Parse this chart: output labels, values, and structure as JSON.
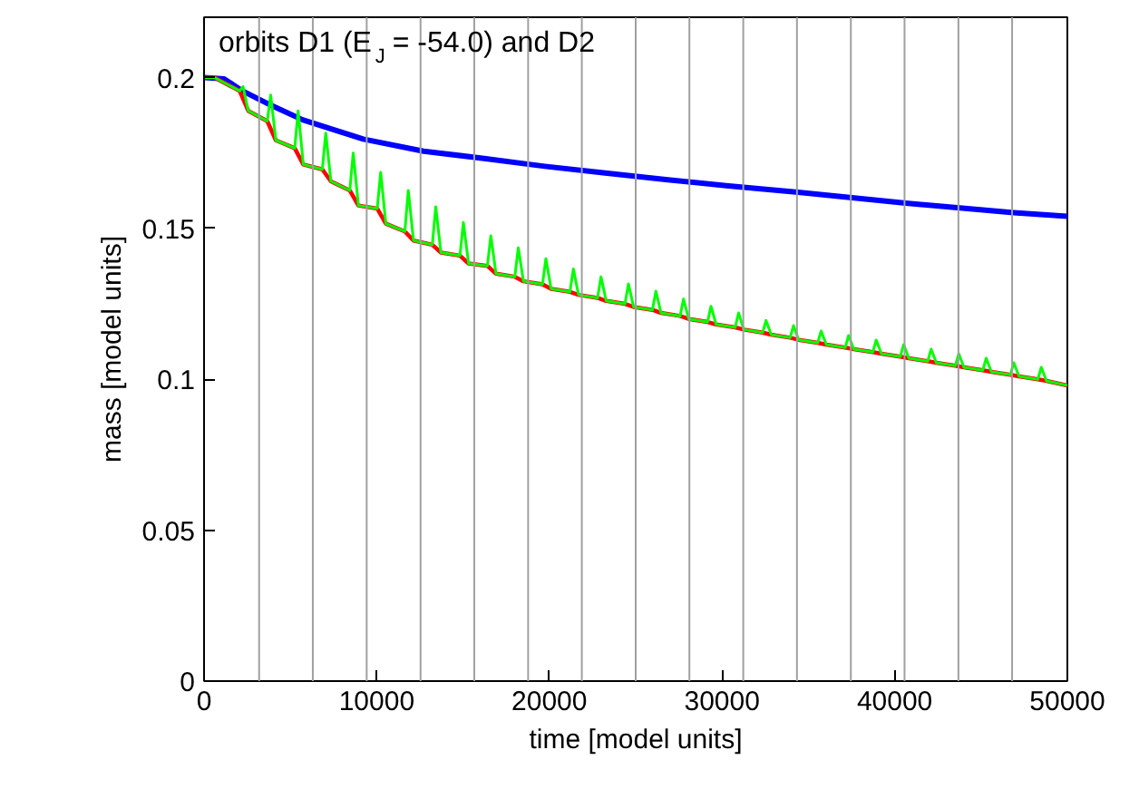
{
  "chart_data": {
    "type": "line",
    "title": "orbits D1 (E$_{J}$ = -54.0) and D2",
    "xlabel": "time [model units]",
    "ylabel": "mass [model units]",
    "xlim": [
      0,
      50000
    ],
    "ylim": [
      0,
      0.22
    ],
    "xticks": [
      0,
      10000,
      20000,
      30000,
      40000,
      50000
    ],
    "yticks": [
      0,
      0.05,
      0.1,
      0.15,
      0.2
    ],
    "grid": false,
    "marker": "none",
    "line_style": "solid",
    "ref_lines": [
      {
        "axis": "x",
        "value": 3190,
        "color": "#a0a0a0"
      },
      {
        "axis": "x",
        "value": 6300,
        "color": "#a0a0a0"
      },
      {
        "axis": "x",
        "value": 9420,
        "color": "#a0a0a0"
      },
      {
        "axis": "x",
        "value": 12540,
        "color": "#a0a0a0"
      },
      {
        "axis": "x",
        "value": 15650,
        "color": "#a0a0a0"
      },
      {
        "axis": "x",
        "value": 18770,
        "color": "#a0a0a0"
      },
      {
        "axis": "x",
        "value": 21880,
        "color": "#a0a0a0"
      },
      {
        "axis": "x",
        "value": 25000,
        "color": "#a0a0a0"
      },
      {
        "axis": "x",
        "value": 28110,
        "color": "#a0a0a0"
      },
      {
        "axis": "x",
        "value": 31230,
        "color": "#a0a0a0"
      },
      {
        "axis": "x",
        "value": 34340,
        "color": "#a0a0a0"
      },
      {
        "axis": "x",
        "value": 37460,
        "color": "#a0a0a0"
      },
      {
        "axis": "x",
        "value": 40570,
        "color": "#a0a0a0"
      },
      {
        "axis": "x",
        "value": 43690,
        "color": "#a0a0a0"
      },
      {
        "axis": "x",
        "value": 46800,
        "color": "#a0a0a0"
      }
    ],
    "series": [
      {
        "color": "#0000ff",
        "x": [
          0,
          1160,
          2210,
          3960,
          5710,
          9220,
          12720,
          16220,
          19730,
          23230,
          26740,
          30240,
          34410,
          37530,
          40650,
          43770,
          46890,
          50000
        ],
        "values": [
          0.2,
          0.1996,
          0.1956,
          0.1906,
          0.186,
          0.1796,
          0.1756,
          0.1732,
          0.1706,
          0.1684,
          0.1662,
          0.1642,
          0.162,
          0.1602,
          0.1584,
          0.1568,
          0.1552,
          0.154
        ]
      },
      {
        "color": "#ff0000",
        "x": [
          0,
          600,
          2060,
          2560,
          3660,
          4160,
          5250,
          5750,
          6850,
          7350,
          8440,
          8940,
          10030,
          10530,
          11630,
          12130,
          13220,
          13720,
          14820,
          15320,
          16410,
          16910,
          18000,
          18500,
          19600,
          20100,
          21190,
          21690,
          22790,
          23290,
          24380,
          24880,
          25970,
          26470,
          27570,
          28070,
          29160,
          29660,
          30760,
          31260,
          32350,
          32850,
          33940,
          34440,
          35540,
          36040,
          37130,
          37630,
          38730,
          39230,
          40320,
          40820,
          41910,
          42410,
          43510,
          44010,
          45100,
          45600,
          46700,
          47200,
          48290,
          48790,
          50000
        ],
        "values": [
          0.2,
          0.2,
          0.1956,
          0.189,
          0.1856,
          0.1792,
          0.1766,
          0.1712,
          0.1696,
          0.1656,
          0.1626,
          0.1576,
          0.1566,
          0.1516,
          0.149,
          0.146,
          0.1446,
          0.142,
          0.141,
          0.1384,
          0.1376,
          0.135,
          0.134,
          0.1325,
          0.1315,
          0.13,
          0.129,
          0.128,
          0.127,
          0.126,
          0.125,
          0.124,
          0.123,
          0.122,
          0.121,
          0.12,
          0.119,
          0.1182,
          0.1172,
          0.1165,
          0.1155,
          0.1148,
          0.1138,
          0.1131,
          0.1121,
          0.1115,
          0.1105,
          0.11,
          0.109,
          0.1085,
          0.1075,
          0.107,
          0.106,
          0.1055,
          0.1045,
          0.104,
          0.103,
          0.1025,
          0.1015,
          0.101,
          0.1,
          0.0995,
          0.098
        ]
      },
      {
        "color": "#00ff00",
        "x": [
          0,
          600,
          2060,
          2260,
          2560,
          3660,
          3860,
          4160,
          5250,
          5450,
          5750,
          6850,
          7050,
          7350,
          8440,
          8640,
          8940,
          10030,
          10230,
          10530,
          11630,
          11830,
          12130,
          13220,
          13420,
          13720,
          14820,
          15020,
          15320,
          16410,
          16610,
          16910,
          18000,
          18200,
          18500,
          19600,
          19800,
          20100,
          21190,
          21390,
          21690,
          22790,
          22990,
          23290,
          24380,
          24580,
          24880,
          25970,
          26170,
          26470,
          27570,
          27770,
          28070,
          29160,
          29360,
          29660,
          30760,
          30960,
          31260,
          32350,
          32550,
          32850,
          33940,
          34140,
          34440,
          35540,
          35740,
          36040,
          37130,
          37330,
          37630,
          38730,
          38930,
          39230,
          40320,
          40520,
          40820,
          41910,
          42110,
          42410,
          43510,
          43710,
          44010,
          45100,
          45300,
          45600,
          46700,
          46900,
          47200,
          48290,
          48490,
          48790,
          50000
        ],
        "values": [
          0.2,
          0.2,
          0.1956,
          0.197,
          0.189,
          0.1856,
          0.1942,
          0.1792,
          0.1766,
          0.189,
          0.1712,
          0.1696,
          0.1816,
          0.1656,
          0.1626,
          0.175,
          0.1576,
          0.1566,
          0.1686,
          0.1516,
          0.149,
          0.1626,
          0.146,
          0.1446,
          0.1572,
          0.142,
          0.141,
          0.152,
          0.1384,
          0.1376,
          0.1476,
          0.135,
          0.134,
          0.1436,
          0.1325,
          0.1315,
          0.14,
          0.13,
          0.129,
          0.1366,
          0.128,
          0.127,
          0.134,
          0.126,
          0.125,
          0.1316,
          0.124,
          0.123,
          0.1292,
          0.122,
          0.121,
          0.1266,
          0.12,
          0.119,
          0.1242,
          0.1182,
          0.1172,
          0.122,
          0.1165,
          0.1155,
          0.1195,
          0.1148,
          0.1138,
          0.1178,
          0.1131,
          0.1121,
          0.116,
          0.1115,
          0.1105,
          0.1145,
          0.11,
          0.109,
          0.113,
          0.1085,
          0.1075,
          0.1115,
          0.107,
          0.106,
          0.11,
          0.1055,
          0.1045,
          0.1085,
          0.104,
          0.103,
          0.107,
          0.1025,
          0.1015,
          0.1055,
          0.101,
          0.1,
          0.104,
          0.0995,
          0.098
        ]
      }
    ]
  }
}
